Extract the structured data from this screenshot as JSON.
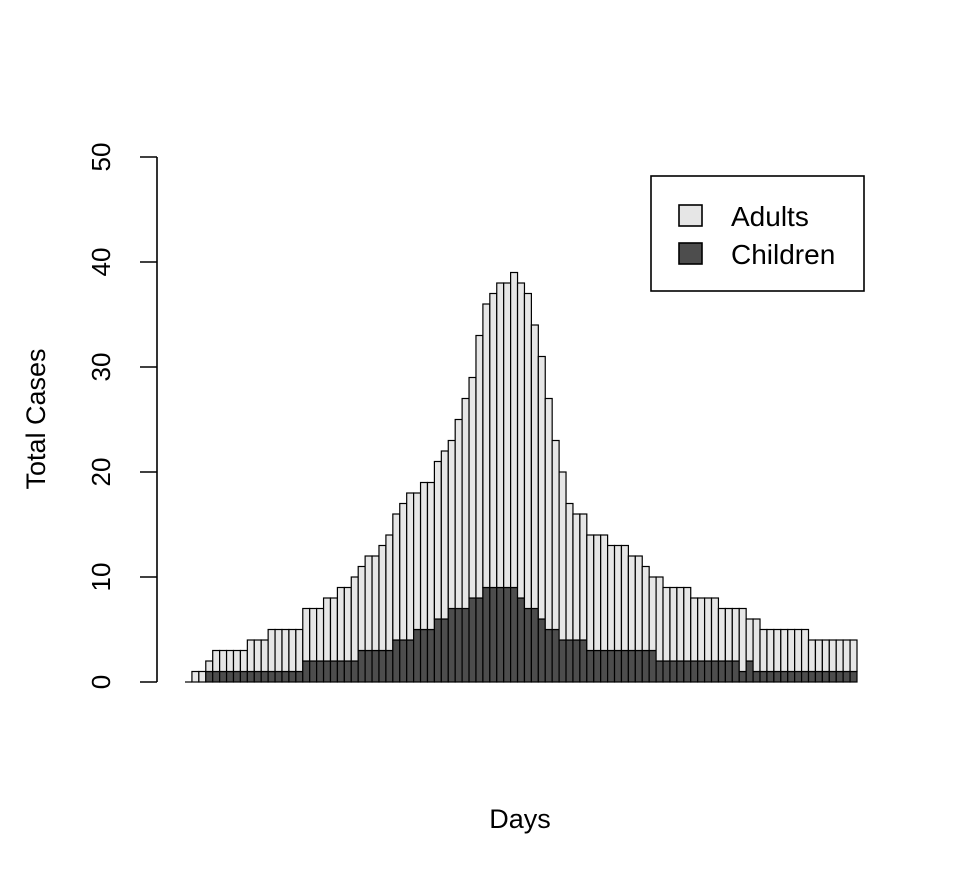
{
  "chart_data": {
    "type": "bar",
    "stacked": true,
    "title": "",
    "xlabel": "Days",
    "ylabel": "Total Cases",
    "ylim": [
      0,
      50
    ],
    "yticks": [
      0,
      10,
      20,
      30,
      40,
      50
    ],
    "grid": false,
    "legend": {
      "position": "top-right",
      "entries": [
        "Adults",
        "Children"
      ]
    },
    "colors": {
      "adults": "#e6e6e6",
      "children": "#4d4d4d",
      "outline": "#000000"
    },
    "days": 97,
    "series": [
      {
        "name": "Children",
        "values": [
          0,
          0,
          0,
          1,
          1,
          1,
          1,
          1,
          1,
          1,
          1,
          1,
          1,
          1,
          1,
          1,
          1,
          2,
          2,
          2,
          2,
          2,
          2,
          2,
          2,
          3,
          3,
          3,
          3,
          3,
          4,
          4,
          4,
          5,
          5,
          5,
          6,
          6,
          7,
          7,
          7,
          8,
          8,
          9,
          9,
          9,
          9,
          9,
          8,
          7,
          7,
          6,
          5,
          5,
          4,
          4,
          4,
          4,
          3,
          3,
          3,
          3,
          3,
          3,
          3,
          3,
          3,
          3,
          2,
          2,
          2,
          2,
          2,
          2,
          2,
          2,
          2,
          2,
          2,
          2,
          1,
          2,
          1,
          1,
          1,
          1,
          1,
          1,
          1,
          1,
          1,
          1,
          1,
          1,
          1,
          1,
          1
        ]
      },
      {
        "name": "Adults",
        "values": [
          0,
          1,
          1,
          1,
          2,
          2,
          2,
          2,
          2,
          3,
          3,
          3,
          4,
          4,
          4,
          4,
          4,
          5,
          5,
          5,
          6,
          6,
          7,
          7,
          8,
          8,
          9,
          9,
          10,
          11,
          12,
          13,
          14,
          13,
          14,
          14,
          15,
          16,
          16,
          18,
          20,
          21,
          25,
          27,
          28,
          29,
          29,
          30,
          30,
          30,
          27,
          25,
          22,
          18,
          16,
          13,
          12,
          12,
          11,
          11,
          11,
          10,
          10,
          10,
          9,
          9,
          8,
          7,
          8,
          7,
          7,
          7,
          7,
          6,
          6,
          6,
          6,
          5,
          5,
          5,
          6,
          4,
          5,
          4,
          4,
          4,
          4,
          4,
          4,
          4,
          3,
          3,
          3,
          3,
          3,
          3,
          3
        ]
      }
    ],
    "totals": [
      0,
      1,
      1,
      2,
      3,
      3,
      3,
      3,
      3,
      4,
      4,
      4,
      5,
      5,
      5,
      5,
      5,
      7,
      7,
      7,
      8,
      8,
      9,
      9,
      10,
      11,
      12,
      12,
      13,
      14,
      16,
      17,
      18,
      18,
      19,
      19,
      21,
      22,
      23,
      25,
      27,
      29,
      33,
      36,
      37,
      38,
      38,
      39,
      38,
      37,
      34,
      31,
      27,
      23,
      20,
      17,
      16,
      16,
      14,
      14,
      14,
      13,
      13,
      13,
      12,
      12,
      11,
      10,
      10,
      9,
      9,
      9,
      9,
      8,
      8,
      8,
      8,
      7,
      7,
      7,
      7,
      6,
      6,
      5,
      5,
      5,
      5,
      5,
      5,
      5,
      4,
      4,
      4,
      4,
      4,
      4,
      4
    ]
  }
}
